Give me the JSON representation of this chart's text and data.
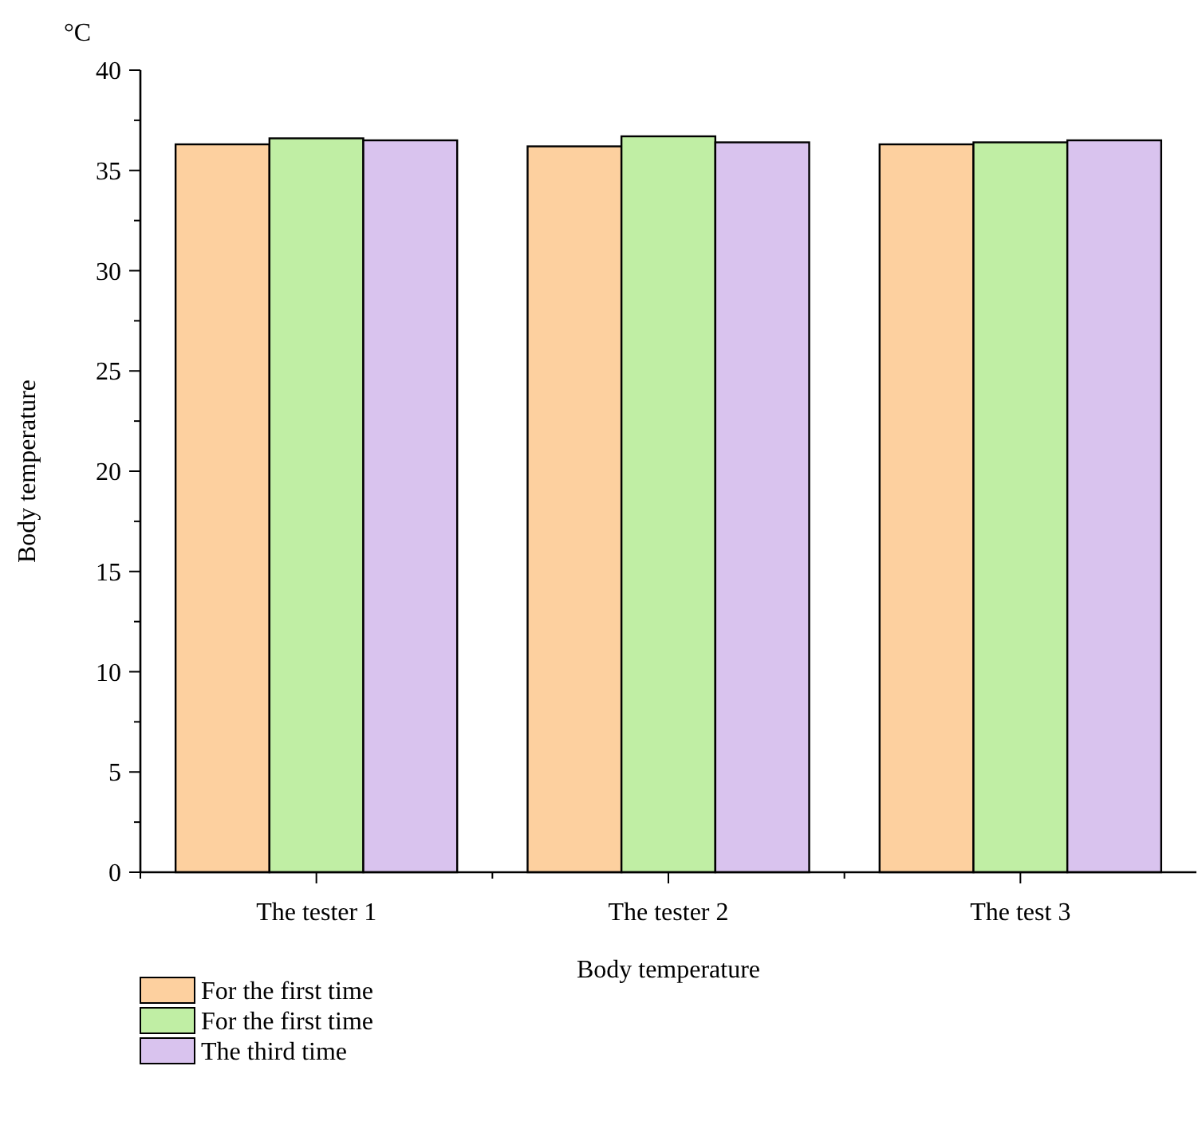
{
  "chart_data": {
    "type": "bar",
    "xlabel": "Body temperature",
    "ylabel": "Body temperature",
    "annotations": [
      "°C"
    ],
    "categories": [
      "The tester 1",
      "The tester 2",
      "The test 3"
    ],
    "series": [
      {
        "name": "For the first time",
        "color": "#fdd09f",
        "values": [
          36.3,
          36.2,
          36.3
        ]
      },
      {
        "name": "For the first time",
        "color": "#c0eea4",
        "values": [
          36.6,
          36.7,
          36.4
        ]
      },
      {
        "name": "The third time",
        "color": "#d9c3ee",
        "values": [
          36.5,
          36.4,
          36.5
        ]
      }
    ],
    "ylim": [
      0,
      40
    ],
    "yticks": [
      0,
      {
        "value": 2.5,
        "label": null
      },
      5,
      {
        "value": 7.5,
        "label": null
      },
      10,
      {
        "value": 12.5,
        "label": null
      },
      15,
      {
        "value": 17.5,
        "label": null
      },
      20,
      {
        "value": 22.5,
        "label": null
      },
      25,
      {
        "value": 27.5,
        "label": null
      },
      30,
      {
        "value": 32.5,
        "label": null
      },
      35,
      {
        "value": 37.5,
        "label": null
      },
      40
    ],
    "grid": false,
    "legend": "bottom left"
  }
}
